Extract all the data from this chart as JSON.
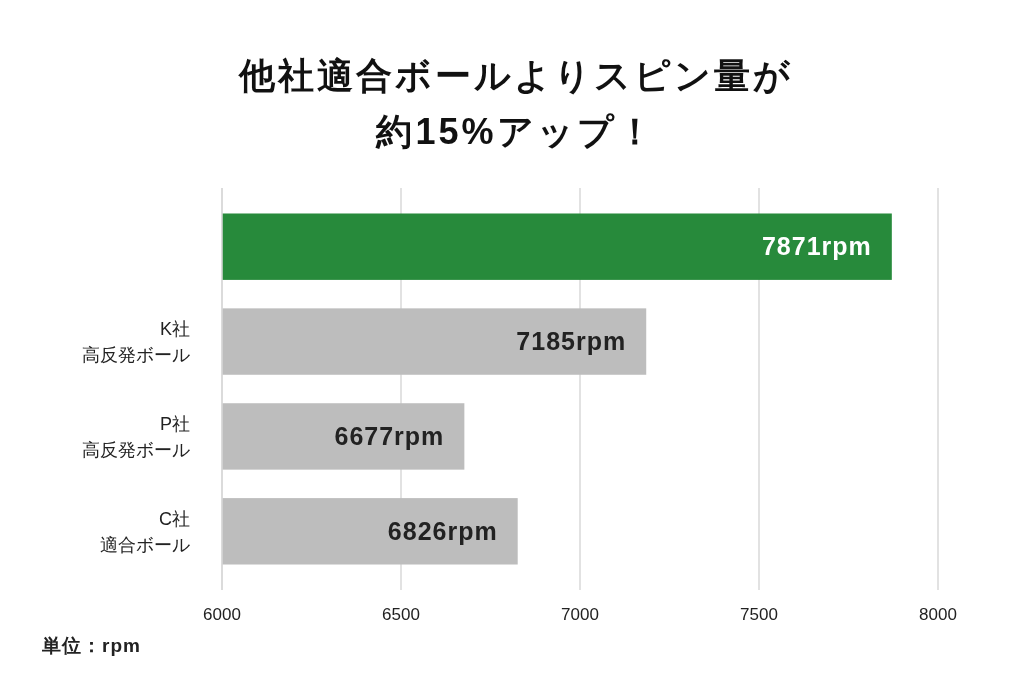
{
  "chart_data": {
    "type": "bar",
    "orientation": "horizontal",
    "title": "他社適合ボールよりスピン量が約15%アップ！",
    "categories": [
      null,
      "K社高反発ボール",
      "P社高反発ボール",
      "C社適合ボール"
    ],
    "values": [
      7871,
      7185,
      6677,
      6826
    ],
    "colors": [
      "#278a3b",
      "#bdbdbd",
      "#bdbdbd",
      "#bdbdbd"
    ],
    "value_labels": [
      "7871rpm",
      "7185rpm",
      "6677rpm",
      "6826rpm"
    ],
    "xlim": [
      6000,
      8000
    ],
    "xticks": [
      6000,
      6500,
      7000,
      7500,
      8000
    ],
    "grid": "x",
    "annotations": [
      "単位：rpm"
    ]
  }
}
